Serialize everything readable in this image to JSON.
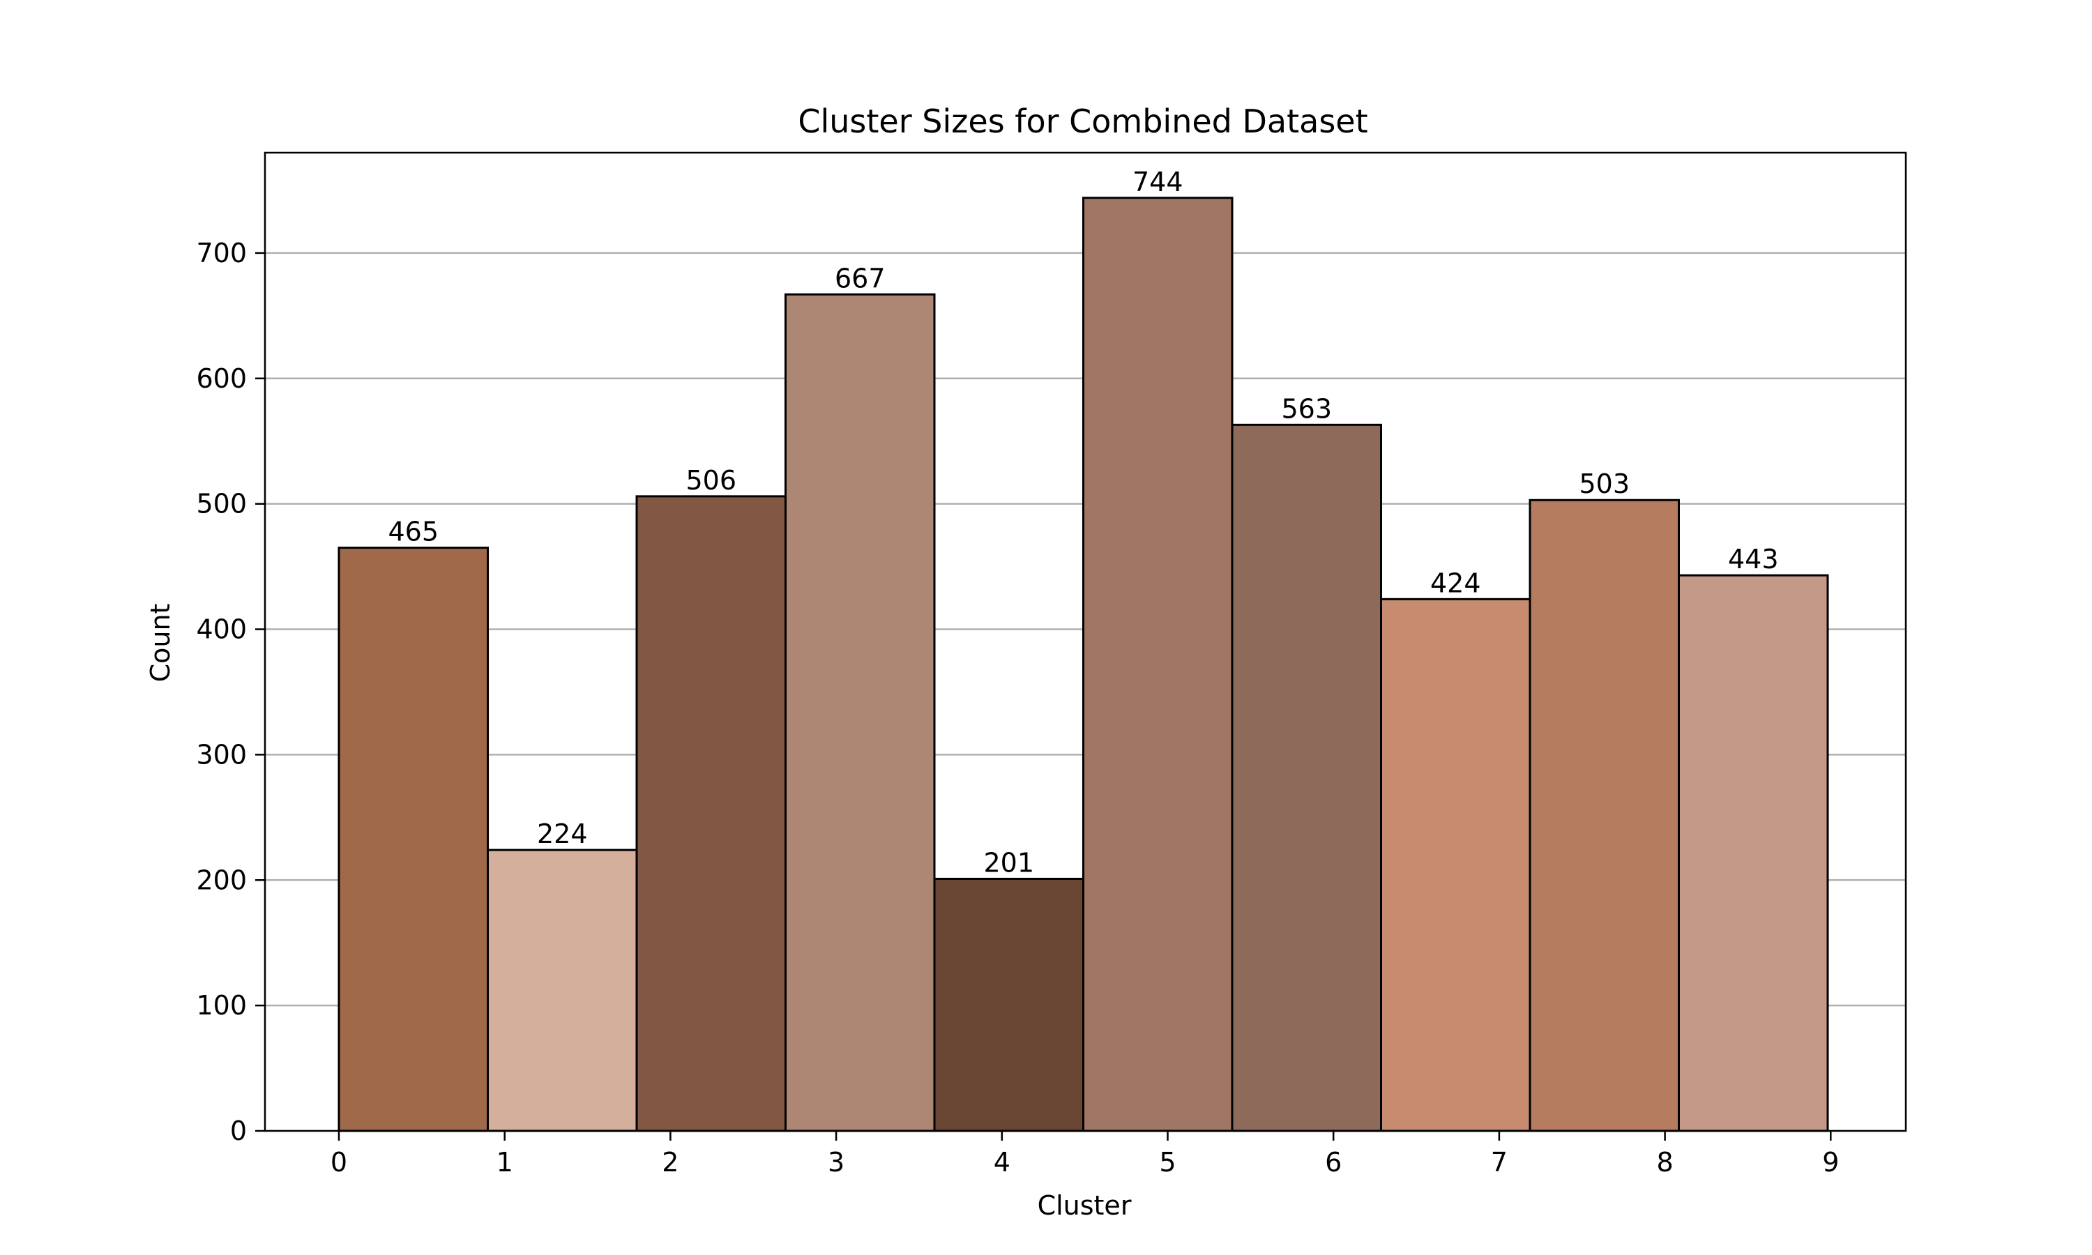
{
  "chart_data": {
    "type": "bar",
    "title": "Cluster Sizes for Combined Dataset",
    "xlabel": "Cluster",
    "ylabel": "Count",
    "categories": [
      "0",
      "1",
      "2",
      "3",
      "4",
      "5",
      "6",
      "7",
      "8",
      "9"
    ],
    "values": [
      465,
      224,
      506,
      667,
      201,
      744,
      563,
      424,
      503,
      443
    ],
    "colors": [
      "#a0694a",
      "#d4af9c",
      "#825844",
      "#ad8774",
      "#694533",
      "#a07664",
      "#8e6a5b",
      "#c78c70",
      "#b57c5f",
      "#c49987"
    ],
    "x_ticks": [
      "0",
      "1",
      "2",
      "3",
      "4",
      "5",
      "6",
      "7",
      "8",
      "9"
    ],
    "y_ticks": [
      0,
      100,
      200,
      300,
      400,
      500,
      600,
      700
    ],
    "ylim": [
      0,
      780
    ],
    "grid": "y-axis horizontal lines",
    "legend": "none"
  }
}
